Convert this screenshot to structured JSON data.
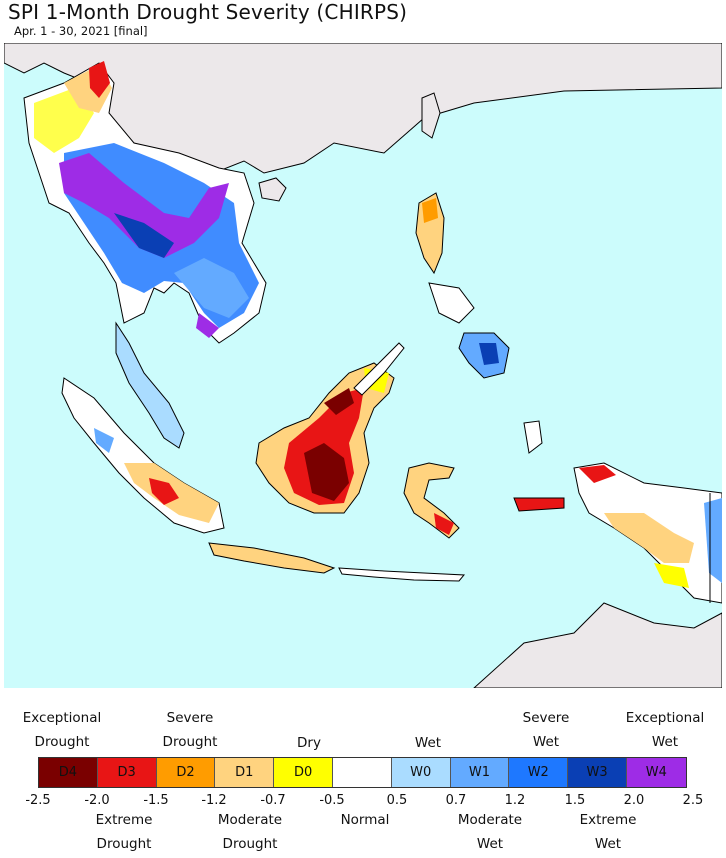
{
  "title": "SPI 1-Month Drought Severity (CHIRPS)",
  "subtitle": "Apr. 1 - 30, 2021 [final]",
  "legend": {
    "top_labels": [
      "Exceptional Drought",
      "Severe Drought",
      "Dry",
      "Wet",
      "Severe Wet",
      "Exceptional Wet"
    ],
    "bottom_labels": [
      "Extreme Drought",
      "Moderate Drought",
      "Normal",
      "Moderate Wet",
      "Extreme Wet"
    ],
    "categories": [
      {
        "code": "D4",
        "color": "#7a0000"
      },
      {
        "code": "D3",
        "color": "#e81515"
      },
      {
        "code": "D2",
        "color": "#ff9c00"
      },
      {
        "code": "D1",
        "color": "#ffd37f"
      },
      {
        "code": "D0",
        "color": "#ffff00"
      },
      {
        "code": "",
        "color": "#ffffff"
      },
      {
        "code": "W0",
        "color": "#aadcff"
      },
      {
        "code": "W1",
        "color": "#63aaff"
      },
      {
        "code": "W2",
        "color": "#1e78ff"
      },
      {
        "code": "W3",
        "color": "#0a3fb4"
      },
      {
        "code": "W4",
        "color": "#9e2ce6"
      }
    ],
    "ticks": [
      "-2.5",
      "-2.0",
      "-1.5",
      "-1.2",
      "-0.7",
      "-0.5",
      "0.5",
      "0.7",
      "1.2",
      "1.5",
      "2.0",
      "2.5"
    ]
  },
  "map": {
    "ocean_color": "#ccfcfc",
    "land_outside_color": "#ece8ea",
    "border_color": "#000000"
  }
}
